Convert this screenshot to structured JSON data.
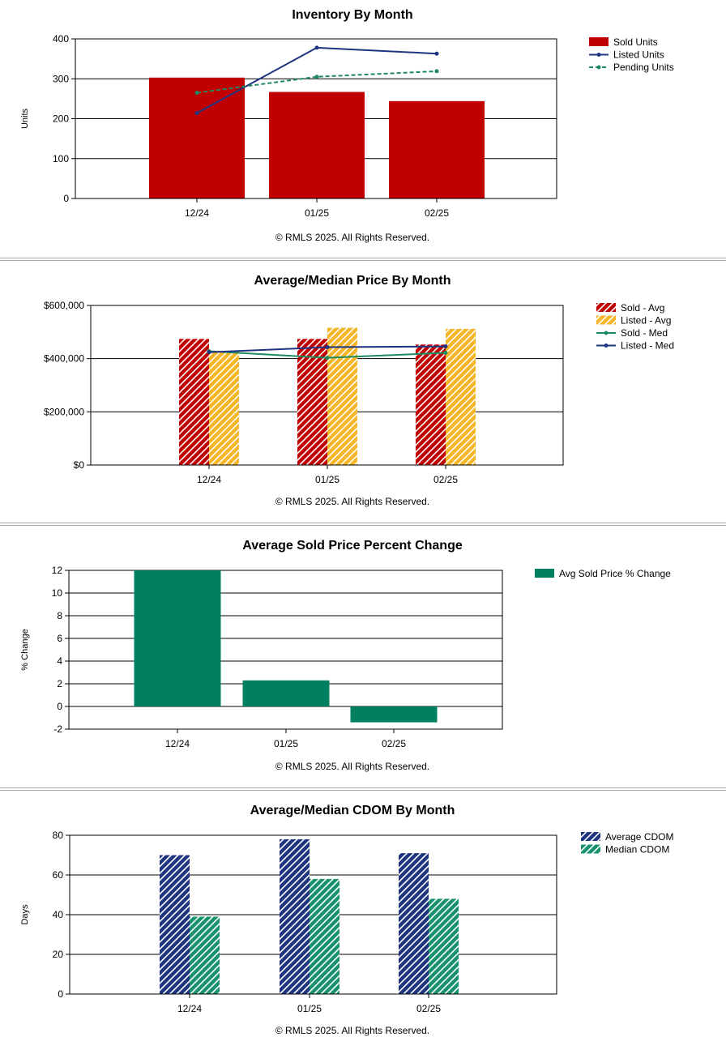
{
  "colors": {
    "sold_red": "#c00000",
    "listed_navy": "#1f3480",
    "pending_green": "#1e8a60",
    "listed_gold": "#f6b525",
    "change_green": "#008060",
    "median_green": "#17926e"
  },
  "chart_data": [
    {
      "type": "bar",
      "title": "Inventory By Month",
      "footer": "© RMLS 2025.  All Rights Reserved.",
      "ylabel": "Units",
      "ylim": [
        0,
        400
      ],
      "yticks": [
        "0",
        "100",
        "200",
        "300",
        "400"
      ],
      "categories": [
        "12/24",
        "01/25",
        "02/25"
      ],
      "legend_position": "right",
      "series": [
        {
          "name": "Sold Units",
          "kind": "bar",
          "values": [
            303,
            267,
            244
          ]
        },
        {
          "name": "Listed Units",
          "kind": "line",
          "values": [
            214,
            378,
            363
          ]
        },
        {
          "name": "Pending Units",
          "kind": "dashed-line",
          "values": [
            265,
            305,
            319
          ]
        }
      ]
    },
    {
      "type": "bar",
      "title": "Average/Median Price By Month",
      "footer": "© RMLS 2025.  All Rights Reserved.",
      "ylim": [
        0,
        600000
      ],
      "yticks": [
        "$0",
        "$200,000",
        "$400,000",
        "$600,000"
      ],
      "categories": [
        "12/24",
        "01/25",
        "02/25"
      ],
      "legend_position": "right",
      "series": [
        {
          "name": "Sold - Avg",
          "kind": "hatched-bar",
          "values": [
            474000,
            474000,
            453000
          ]
        },
        {
          "name": "Listed - Avg",
          "kind": "hatched-bar",
          "values": [
            426000,
            516000,
            512000
          ]
        },
        {
          "name": "Sold - Med",
          "kind": "line",
          "values": [
            428000,
            403000,
            422000
          ]
        },
        {
          "name": "Listed - Med",
          "kind": "line",
          "values": [
            424000,
            443000,
            446000
          ]
        }
      ]
    },
    {
      "type": "bar",
      "title": "Average Sold Price Percent Change",
      "footer": "© RMLS 2025.  All Rights Reserved.",
      "ylabel": "% Change",
      "ylim": [
        -2,
        12
      ],
      "yticks": [
        "-2",
        "0",
        "2",
        "4",
        "6",
        "8",
        "10",
        "12"
      ],
      "categories": [
        "12/24",
        "01/25",
        "02/25"
      ],
      "legend_position": "right",
      "series": [
        {
          "name": "Avg Sold Price % Change",
          "kind": "bar",
          "values": [
            12,
            2.3,
            -1.4
          ]
        }
      ]
    },
    {
      "type": "bar",
      "title": "Average/Median CDOM By Month",
      "footer": "© RMLS 2025.  All Rights Reserved.",
      "ylabel": "Days",
      "ylim": [
        0,
        80
      ],
      "yticks": [
        "0",
        "20",
        "40",
        "60",
        "80"
      ],
      "categories": [
        "12/24",
        "01/25",
        "02/25"
      ],
      "legend_position": "right",
      "series": [
        {
          "name": "Average CDOM",
          "kind": "hatched-bar",
          "values": [
            70,
            78,
            71
          ]
        },
        {
          "name": "Median CDOM",
          "kind": "hatched-bar",
          "values": [
            39,
            58,
            48
          ]
        }
      ]
    }
  ]
}
